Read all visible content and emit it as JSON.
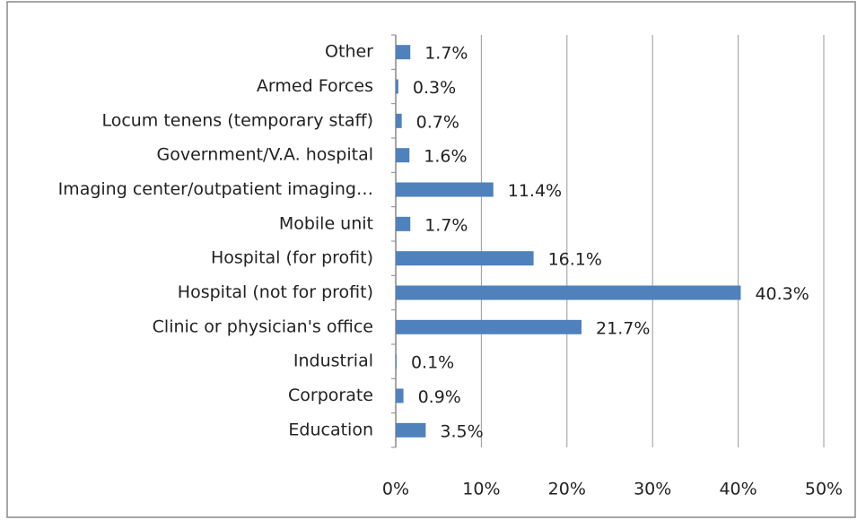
{
  "chart_data": {
    "type": "barh",
    "categories": [
      "Other",
      "Armed Forces",
      "Locum tenens (temporary staff)",
      "Government/V.A. hospital",
      "Imaging center/outpatient imaging…",
      "Mobile unit",
      "Hospital (for profit)",
      "Hospital (not for profit)",
      "Clinic or physician's office",
      "Industrial",
      "Corporate",
      "Education"
    ],
    "values": [
      1.7,
      0.3,
      0.7,
      1.6,
      11.4,
      1.7,
      16.1,
      40.3,
      21.7,
      0.1,
      0.9,
      3.5
    ],
    "value_labels": [
      "1.7%",
      "0.3%",
      "0.7%",
      "1.6%",
      "11.4%",
      "1.7%",
      "16.1%",
      "40.3%",
      "21.7%",
      "0.1%",
      "0.9%",
      "3.5%"
    ],
    "color": "#4f81bd",
    "xlim": [
      0,
      50
    ],
    "xticks": [
      {
        "value": 0,
        "label": "0%"
      },
      {
        "value": 10,
        "label": "10%"
      },
      {
        "value": 20,
        "label": "20%"
      },
      {
        "value": 30,
        "label": "30%"
      },
      {
        "value": 40,
        "label": "40%"
      },
      {
        "value": 50,
        "label": "50%"
      }
    ],
    "grid": true
  }
}
